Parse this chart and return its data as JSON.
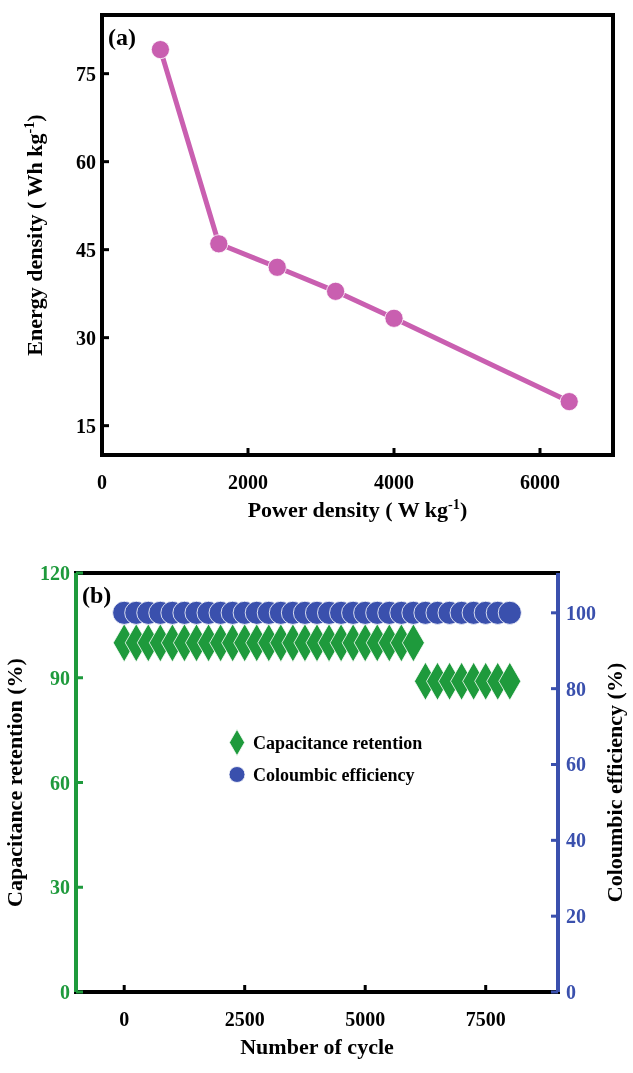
{
  "chart_data": [
    {
      "type": "line",
      "title": "(a)",
      "xlabel": "Power density ( W kg$^{-1}$)",
      "ylabel": "Energy density ( Wh kg$^{-1}$)",
      "x": [
        800,
        1600,
        2400,
        3200,
        4000,
        6400
      ],
      "xlim": [
        0,
        7000
      ],
      "xticks": [
        0,
        2000,
        4000,
        6000
      ],
      "ylim": [
        10,
        85
      ],
      "yticks": [
        15,
        30,
        45,
        60,
        75
      ],
      "marker": "circle",
      "line_style": "solid",
      "series": [
        {
          "color": "#c95fb0",
          "values": [
            79.1,
            46,
            42,
            37.9,
            33.3,
            19.1
          ]
        }
      ]
    },
    {
      "type": "scatter",
      "title": "(b)",
      "xlabel": "Number of cycle",
      "ylabel": "Capacitance retention (%)",
      "y2label": "Coloumbic efficiency (%)",
      "xlim": [
        -1000,
        9000
      ],
      "xticks": [
        0,
        2500,
        5000,
        7500
      ],
      "ylim": [
        0,
        120
      ],
      "yticks": [
        0,
        30,
        60,
        90,
        120
      ],
      "y2lim": [
        0,
        110.5
      ],
      "y2ticks": [
        0,
        20,
        40,
        60,
        80,
        100
      ],
      "legend": "center",
      "series": [
        {
          "name": "Capacitance retention",
          "color": "#1e9a3c",
          "marker": "diamond",
          "x": [
            0,
            250,
            500,
            750,
            1000,
            1250,
            1500,
            1750,
            2000,
            2250,
            2500,
            2750,
            3000,
            3250,
            3500,
            3750,
            4000,
            4250,
            4500,
            4750,
            5000,
            5250,
            5500,
            5750,
            6000,
            6250,
            6500,
            6750,
            7000,
            7250,
            7500,
            7750,
            8000
          ],
          "values": [
            100,
            100,
            100,
            100,
            100,
            100,
            100,
            100,
            100,
            100,
            100,
            100,
            100,
            100,
            100,
            100,
            100,
            100,
            100,
            100,
            100,
            100,
            100,
            100,
            100,
            89,
            89,
            89,
            89,
            89,
            89,
            89,
            89
          ]
        },
        {
          "name": "Coloumbic efficiency",
          "color": "#3a50ad",
          "marker": "circle",
          "axis": "y2",
          "x": [
            0,
            250,
            500,
            750,
            1000,
            1250,
            1500,
            1750,
            2000,
            2250,
            2500,
            2750,
            3000,
            3250,
            3500,
            3750,
            4000,
            4250,
            4500,
            4750,
            5000,
            5250,
            5500,
            5750,
            6000,
            6250,
            6500,
            6750,
            7000,
            7250,
            7500,
            7750,
            8000
          ],
          "values": [
            100,
            100,
            100,
            100,
            100,
            100,
            100,
            100,
            100,
            100,
            100,
            100,
            100,
            100,
            100,
            100,
            100,
            100,
            100,
            100,
            100,
            100,
            100,
            100,
            100,
            100,
            100,
            100,
            100,
            100,
            100,
            100,
            100
          ]
        }
      ]
    }
  ]
}
